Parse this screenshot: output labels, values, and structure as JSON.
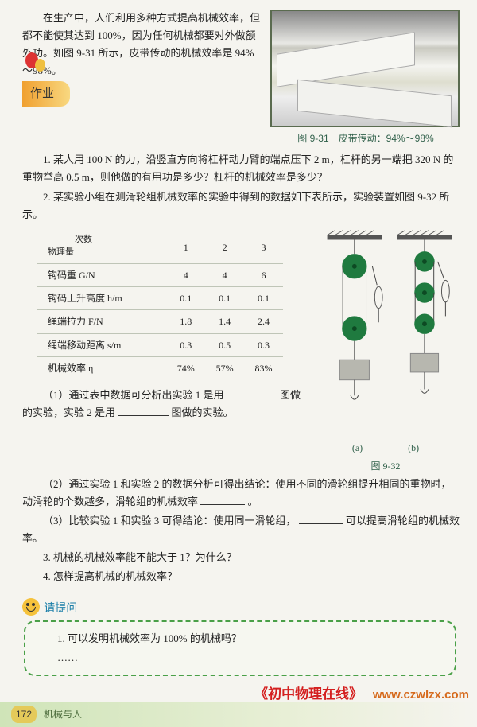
{
  "intro": "在生产中，人们利用多种方式提高机械效率，但都不能使其达到 100%，因为任何机械都要对外做额外功。如图 9-31 所示，皮带传动的机械效率是 94%～98%。",
  "fig31_cap": "图 9-31　皮带传动：94%～98%",
  "homework_title": "作业",
  "q1": "1. 某人用 100 N 的力，沿竖直方向将杠杆动力臂的端点压下 2 m，杠杆的另一端把 320 N 的重物举高 0.5 m，则他做的有用功是多少？杠杆的机械效率是多少？",
  "q2": "2. 某实验小组在测滑轮组机械效率的实验中得到的数据如下表所示，实验装置如图 9-32 所示。",
  "table": {
    "head": [
      "次数\n物理量",
      "1",
      "2",
      "3"
    ],
    "rows": [
      [
        "钩码重 G/N",
        "4",
        "4",
        "6"
      ],
      [
        "钩码上升高度 h/m",
        "0.1",
        "0.1",
        "0.1"
      ],
      [
        "绳端拉力 F/N",
        "1.8",
        "1.4",
        "2.4"
      ],
      [
        "绳端移动距离 s/m",
        "0.3",
        "0.5",
        "0.3"
      ],
      [
        "机械效率 η",
        "74%",
        "57%",
        "83%"
      ]
    ]
  },
  "fig32_a": "(a)",
  "fig32_b": "(b)",
  "fig32_cap": "图 9-32",
  "q2_1a": "（1）通过表中数据可分析出实验 1 是用",
  "q2_1b": "图做的实验，实验 2 是用",
  "q2_1c": "图做的实验。",
  "q2_2a": "（2）通过实验 1 和实验 2 的数据分析可得出结论：使用不同的滑轮组提升相同的重物时，动滑轮的个数越多，滑轮组的机械效率",
  "q2_2b": "。",
  "q2_3a": "（3）比较实验 1 和实验 3 可得结论：使用同一滑轮组，",
  "q2_3b": "可以提高滑轮组的机械效率。",
  "q3": "3. 机械的机械效率能不能大于 1？为什么？",
  "q4": "4. 怎样提高机械的机械效率？",
  "ask_title": "请提问",
  "ask_1": "1. 可以发明机械效率为 100% 的机械吗？",
  "ask_2": "……",
  "page_num": "172",
  "page_unit": "机械与人",
  "wm_title": "《初中物理在线》",
  "wm_url": "www.czwlzx.com",
  "colors": {
    "pulley": "#1f7a3f",
    "weight": "#b7b7af",
    "bar": "#555",
    "rope": "#444"
  }
}
